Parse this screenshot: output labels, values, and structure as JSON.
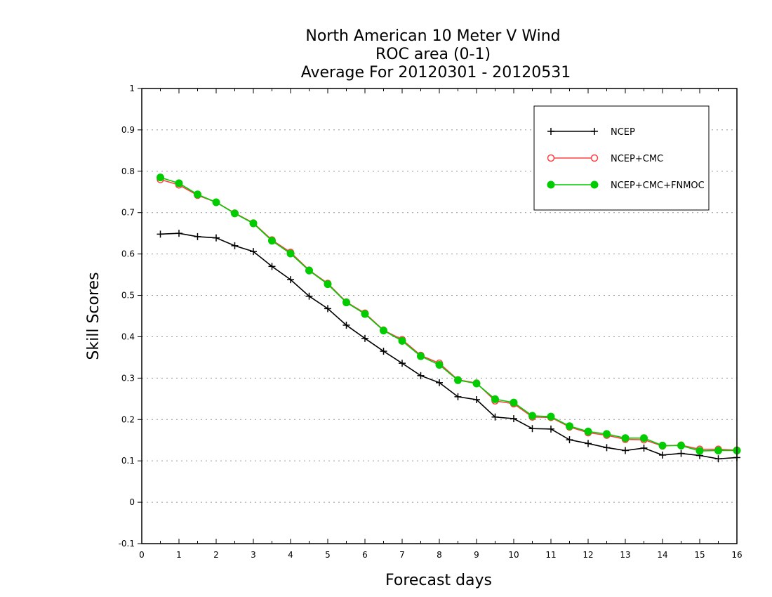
{
  "chart_data": {
    "type": "line",
    "title_lines": [
      "North American 10 Meter V Wind",
      "ROC area (0-1)",
      "Average For 20120301 - 20120531"
    ],
    "xlabel": "Forecast days",
    "ylabel": "Skill Scores",
    "xlim": [
      0,
      16
    ],
    "ylim": [
      -0.1,
      1
    ],
    "xticks": [
      "0",
      "1",
      "2",
      "3",
      "4",
      "5",
      "6",
      "7",
      "8",
      "9",
      "10",
      "11",
      "12",
      "13",
      "14",
      "15",
      "16"
    ],
    "yticks": [
      "-0.1",
      "0",
      "0.1",
      "0.2",
      "0.3",
      "0.4",
      "0.5",
      "0.6",
      "0.7",
      "0.8",
      "0.9",
      "1"
    ],
    "grid": true,
    "legend_position": "top-right",
    "x": [
      0.5,
      1,
      1.5,
      2,
      2.5,
      3,
      3.5,
      4,
      4.5,
      5,
      5.5,
      6,
      6.5,
      7,
      7.5,
      8,
      8.5,
      9,
      9.5,
      10,
      10.5,
      11,
      11.5,
      12,
      12.5,
      13,
      13.5,
      14,
      14.5,
      15,
      15.5,
      16
    ],
    "series": [
      {
        "name": "NCEP",
        "color": "#000000",
        "marker": "plus",
        "values": [
          0.648,
          0.65,
          0.642,
          0.639,
          0.62,
          0.606,
          0.57,
          0.538,
          0.498,
          0.468,
          0.428,
          0.396,
          0.365,
          0.336,
          0.306,
          0.289,
          0.255,
          0.248,
          0.206,
          0.202,
          0.178,
          0.177,
          0.151,
          0.142,
          0.132,
          0.125,
          0.131,
          0.114,
          0.118,
          0.113,
          0.105,
          0.108
        ]
      },
      {
        "name": "NCEP+CMC",
        "color": "#ff4040",
        "marker": "open-circle",
        "values": [
          0.78,
          0.767,
          0.742,
          0.725,
          0.699,
          0.675,
          0.634,
          0.604,
          0.561,
          0.529,
          0.484,
          0.457,
          0.416,
          0.393,
          0.355,
          0.336,
          0.296,
          0.288,
          0.245,
          0.238,
          0.206,
          0.205,
          0.182,
          0.168,
          0.162,
          0.152,
          0.151,
          0.136,
          0.138,
          0.128,
          0.128,
          0.126
        ]
      },
      {
        "name": "NCEP+CMC+FNMOC",
        "color": "#00cc00",
        "marker": "filled-circle",
        "values": [
          0.785,
          0.771,
          0.744,
          0.725,
          0.698,
          0.674,
          0.632,
          0.601,
          0.56,
          0.527,
          0.483,
          0.455,
          0.415,
          0.39,
          0.353,
          0.332,
          0.295,
          0.287,
          0.249,
          0.241,
          0.209,
          0.207,
          0.184,
          0.171,
          0.165,
          0.155,
          0.155,
          0.137,
          0.137,
          0.124,
          0.125,
          0.125
        ]
      }
    ]
  }
}
